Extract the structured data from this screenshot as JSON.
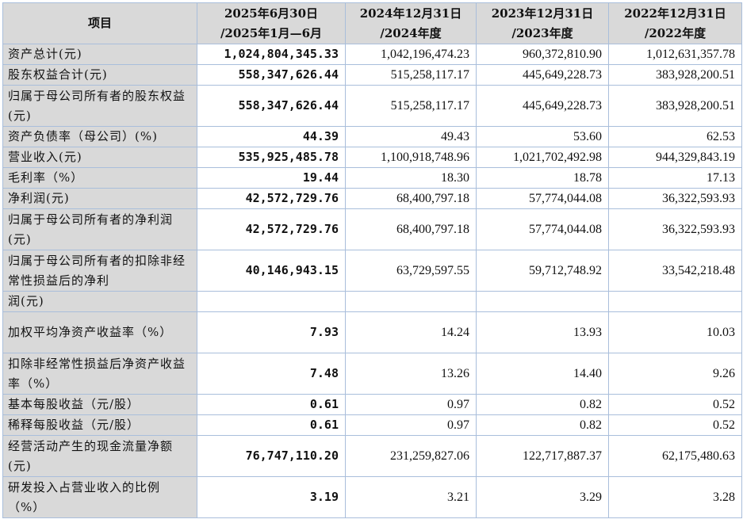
{
  "table": {
    "headers": [
      "项目",
      "2025年6月30日\n/2025年1月—6月",
      "2024年12月31日\n/2024年度",
      "2023年12月31日\n/2023年度",
      "2022年12月31日\n/2022年度"
    ],
    "rows": [
      {
        "label": "资产总计(元)",
        "values": [
          "1,024,804,345.33",
          "1,042,196,474.23",
          "960,372,810.90",
          "1,012,631,357.78"
        ]
      },
      {
        "label": "股东权益合计(元)",
        "values": [
          "558,347,626.44",
          "515,258,117.17",
          "445,649,228.73",
          "383,928,200.51"
        ]
      },
      {
        "label": "归属于母公司所有者的股东权益(元)",
        "values": [
          "558,347,626.44",
          "515,258,117.17",
          "445,649,228.73",
          "383,928,200.51"
        ]
      },
      {
        "label": "资产负债率（母公司）(%)",
        "values": [
          "44.39",
          "49.43",
          "53.60",
          "62.53"
        ]
      },
      {
        "label": "营业收入(元)",
        "values": [
          "535,925,485.78",
          "1,100,918,748.96",
          "1,021,702,492.98",
          "944,329,843.19"
        ]
      },
      {
        "label": "毛利率（%）",
        "values": [
          "19.44",
          "18.30",
          "18.78",
          "17.13"
        ]
      },
      {
        "label": "净利润(元)",
        "values": [
          "42,572,729.76",
          "68,400,797.18",
          "57,774,044.08",
          "36,322,593.93"
        ]
      },
      {
        "label": "归属于母公司所有者的净利润(元)",
        "values": [
          "42,572,729.76",
          "68,400,797.18",
          "57,774,044.08",
          "36,322,593.93"
        ]
      },
      {
        "label": "归属于母公司所有者的扣除非经常性损益后的净利",
        "values": [
          "40,146,943.15",
          "63,729,597.55",
          "59,712,748.92",
          "33,542,218.48"
        ]
      },
      {
        "label": "润(元)",
        "values": [
          "",
          "",
          "",
          ""
        ]
      },
      {
        "label": "加权平均净资产收益率（%）",
        "values": [
          "7.93",
          "14.24",
          "13.93",
          "10.03"
        ]
      },
      {
        "label": "扣除非经常性损益后净资产收益率（%）",
        "values": [
          "7.48",
          "13.26",
          "14.40",
          "9.26"
        ]
      },
      {
        "label": "基本每股收益（元/股）",
        "values": [
          "0.61",
          "0.97",
          "0.82",
          "0.52"
        ]
      },
      {
        "label": "稀释每股收益（元/股）",
        "values": [
          "0.61",
          "0.97",
          "0.82",
          "0.52"
        ]
      },
      {
        "label": "经营活动产生的现金流量净额(元)",
        "values": [
          "76,747,110.20",
          "231,259,827.06",
          "122,717,887.37",
          "62,175,480.63"
        ]
      },
      {
        "label": "研发投入占营业收入的比例（%）",
        "values": [
          "3.19",
          "3.21",
          "3.29",
          "3.28"
        ]
      }
    ]
  }
}
